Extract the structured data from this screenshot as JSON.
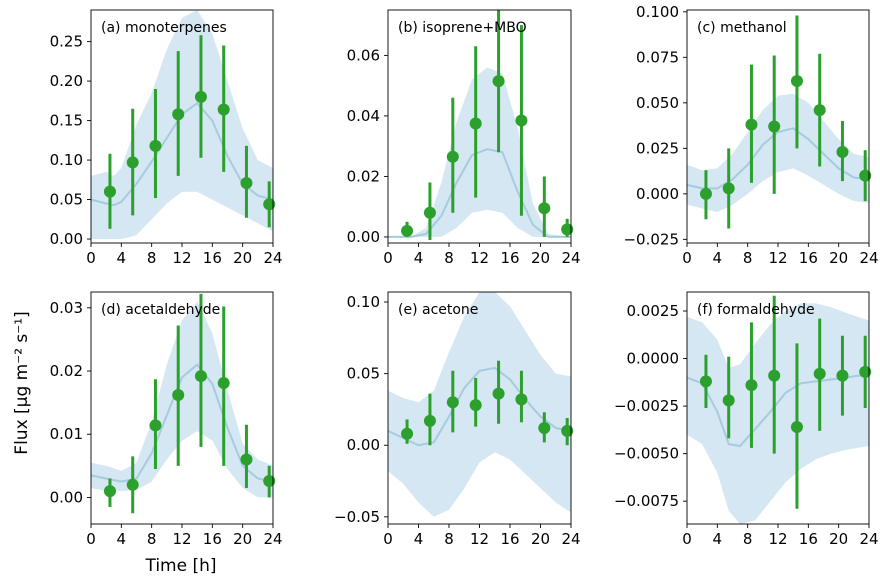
{
  "figure": {
    "ylabel": "Flux [μg m⁻² s⁻¹]",
    "xlabel": "Time [h]"
  },
  "colors": {
    "points": "#2ca02c",
    "model_line": "#a6cbe0",
    "model_band": "#cde3f0"
  },
  "chart_data": [
    {
      "type": "scatter",
      "title": "(a) monoterpenes",
      "xlim": [
        0,
        24
      ],
      "ylim": [
        -0.005,
        0.29
      ],
      "xticks": [
        0,
        4,
        8,
        12,
        16,
        20,
        24
      ],
      "yticks": [
        0.0,
        0.05,
        0.1,
        0.15,
        0.2,
        0.25
      ],
      "ytick_labels": [
        "0.00",
        "0.05",
        "0.10",
        "0.15",
        "0.20",
        "0.25"
      ],
      "series": [
        {
          "x": [
            2.5,
            5.5,
            8.5,
            11.5,
            14.5,
            17.5,
            20.5,
            23.5
          ],
          "y": [
            0.06,
            0.097,
            0.118,
            0.158,
            0.18,
            0.164,
            0.071,
            0.044
          ],
          "err_low": [
            0.013,
            0.03,
            0.052,
            0.08,
            0.103,
            0.085,
            0.027,
            0.015
          ],
          "err_high": [
            0.108,
            0.165,
            0.19,
            0.238,
            0.258,
            0.245,
            0.118,
            0.073
          ]
        },
        {
          "x": [
            0,
            2,
            3,
            4,
            6,
            8,
            10,
            12,
            14,
            16,
            18,
            20,
            22,
            24
          ],
          "y": [
            0.05,
            0.045,
            0.043,
            0.047,
            0.07,
            0.098,
            0.128,
            0.158,
            0.172,
            0.15,
            0.105,
            0.07,
            0.055,
            0.05
          ],
          "band_low": [
            0.0,
            0.0,
            0.0,
            0.0,
            0.005,
            0.025,
            0.045,
            0.06,
            0.06,
            0.05,
            0.04,
            0.03,
            0.02,
            0.01
          ],
          "band_high": [
            0.08,
            0.085,
            0.08,
            0.09,
            0.145,
            0.185,
            0.24,
            0.28,
            0.29,
            0.26,
            0.2,
            0.14,
            0.1,
            0.09
          ]
        }
      ]
    },
    {
      "type": "scatter",
      "title": "(b) isoprene+MBO",
      "xlim": [
        0,
        24
      ],
      "ylim": [
        -0.002,
        0.075
      ],
      "xticks": [
        0,
        4,
        8,
        12,
        16,
        20,
        24
      ],
      "yticks": [
        0.0,
        0.02,
        0.04,
        0.06
      ],
      "ytick_labels": [
        "0.00",
        "0.02",
        "0.04",
        "0.06"
      ],
      "series": [
        {
          "x": [
            2.5,
            5.5,
            8.5,
            11.5,
            14.5,
            17.5,
            20.5,
            23.5
          ],
          "y": [
            0.002,
            0.008,
            0.0265,
            0.0375,
            0.0515,
            0.0385,
            0.0095,
            0.0025
          ],
          "err_low": [
            0.0,
            -0.001,
            0.008,
            0.013,
            0.028,
            0.007,
            0.0,
            0.0
          ],
          "err_high": [
            0.005,
            0.018,
            0.046,
            0.063,
            0.075,
            0.07,
            0.02,
            0.006
          ]
        },
        {
          "x": [
            0,
            3,
            5,
            7,
            9,
            11,
            13,
            15,
            17,
            19,
            21,
            24
          ],
          "y": [
            0.0,
            0.0,
            0.001,
            0.007,
            0.018,
            0.027,
            0.029,
            0.028,
            0.015,
            0.004,
            0.0,
            0.0
          ],
          "band_low": [
            0.0,
            0.0,
            0.0,
            0.0,
            0.003,
            0.008,
            0.009,
            0.008,
            0.003,
            0.0,
            0.0,
            0.0
          ],
          "band_high": [
            0.0,
            0.0,
            0.003,
            0.018,
            0.038,
            0.052,
            0.056,
            0.054,
            0.036,
            0.011,
            0.001,
            0.0
          ]
        }
      ]
    },
    {
      "type": "scatter",
      "title": "(c) methanol",
      "xlim": [
        0,
        24
      ],
      "ylim": [
        -0.027,
        0.101
      ],
      "xticks": [
        0,
        4,
        8,
        12,
        16,
        20,
        24
      ],
      "yticks": [
        -0.025,
        0.0,
        0.025,
        0.05,
        0.075,
        0.1
      ],
      "ytick_labels": [
        "−0.025",
        "0.000",
        "0.025",
        "0.050",
        "0.075",
        "0.100"
      ],
      "series": [
        {
          "x": [
            2.5,
            5.5,
            8.5,
            11.5,
            14.5,
            17.5,
            20.5,
            23.5
          ],
          "y": [
            0.0,
            0.003,
            0.038,
            0.037,
            0.062,
            0.046,
            0.023,
            0.01
          ],
          "err_low": [
            -0.014,
            -0.019,
            0.006,
            0.0,
            0.025,
            0.015,
            0.007,
            -0.004
          ],
          "err_high": [
            0.013,
            0.025,
            0.071,
            0.076,
            0.098,
            0.077,
            0.04,
            0.024
          ]
        },
        {
          "x": [
            0,
            2,
            4,
            6,
            8,
            10,
            12,
            14,
            16,
            18,
            20,
            22,
            24
          ],
          "y": [
            0.005,
            0.003,
            0.003,
            0.008,
            0.016,
            0.027,
            0.034,
            0.036,
            0.03,
            0.022,
            0.014,
            0.009,
            0.008
          ],
          "band_low": [
            -0.006,
            -0.008,
            -0.01,
            -0.006,
            0.0,
            0.007,
            0.012,
            0.014,
            0.01,
            0.005,
            0.0,
            -0.004,
            -0.005
          ],
          "band_high": [
            0.016,
            0.013,
            0.014,
            0.022,
            0.034,
            0.046,
            0.054,
            0.055,
            0.05,
            0.04,
            0.03,
            0.022,
            0.02
          ]
        }
      ]
    },
    {
      "type": "scatter",
      "title": "(d) acetaldehyde",
      "xlim": [
        0,
        24
      ],
      "ylim": [
        -0.0042,
        0.0325
      ],
      "xticks": [
        0,
        4,
        8,
        12,
        16,
        20,
        24
      ],
      "yticks": [
        0.0,
        0.01,
        0.02,
        0.03
      ],
      "ytick_labels": [
        "0.00",
        "0.01",
        "0.02",
        "0.03"
      ],
      "series": [
        {
          "x": [
            2.5,
            5.5,
            8.5,
            11.5,
            14.5,
            17.5,
            20.5,
            23.5
          ],
          "y": [
            0.001,
            0.002,
            0.0114,
            0.0162,
            0.0192,
            0.0181,
            0.006,
            0.0026
          ],
          "err_low": [
            -0.0015,
            -0.0025,
            0.0045,
            0.005,
            0.008,
            0.005,
            0.0015,
            0.0
          ],
          "err_high": [
            0.003,
            0.0065,
            0.0187,
            0.0272,
            0.0322,
            0.0302,
            0.0115,
            0.005
          ]
        },
        {
          "x": [
            0,
            2,
            4,
            6,
            8,
            10,
            12,
            14,
            16,
            18,
            20,
            22,
            24
          ],
          "y": [
            0.0035,
            0.003,
            0.0025,
            0.003,
            0.007,
            0.013,
            0.019,
            0.021,
            0.018,
            0.011,
            0.005,
            0.003,
            0.0025
          ],
          "band_low": [
            0.0015,
            0.001,
            0.001,
            0.0012,
            0.0025,
            0.006,
            0.009,
            0.0105,
            0.009,
            0.0045,
            0.0015,
            0.0,
            0.0
          ],
          "band_high": [
            0.0055,
            0.005,
            0.0042,
            0.0055,
            0.012,
            0.021,
            0.028,
            0.031,
            0.026,
            0.017,
            0.0085,
            0.006,
            0.005
          ]
        }
      ]
    },
    {
      "type": "scatter",
      "title": "(e) acetone",
      "xlim": [
        0,
        24
      ],
      "ylim": [
        -0.055,
        0.107
      ],
      "xticks": [
        0,
        4,
        8,
        12,
        16,
        20,
        24
      ],
      "yticks": [
        -0.05,
        0.0,
        0.05,
        0.1
      ],
      "ytick_labels": [
        "−0.05",
        "0.00",
        "0.05",
        "0.10"
      ],
      "series": [
        {
          "x": [
            2.5,
            5.5,
            8.5,
            11.5,
            14.5,
            17.5,
            20.5,
            23.5
          ],
          "y": [
            0.008,
            0.017,
            0.03,
            0.028,
            0.036,
            0.032,
            0.012,
            0.01
          ],
          "err_low": [
            0.001,
            0.0,
            0.009,
            0.013,
            0.015,
            0.016,
            0.002,
            0.0
          ],
          "err_high": [
            0.018,
            0.036,
            0.052,
            0.047,
            0.059,
            0.052,
            0.023,
            0.019
          ]
        },
        {
          "x": [
            0,
            2,
            4,
            6,
            8,
            10,
            12,
            14,
            16,
            18,
            20,
            22,
            24
          ],
          "y": [
            0.01,
            0.005,
            0.0,
            0.002,
            0.02,
            0.04,
            0.052,
            0.054,
            0.046,
            0.032,
            0.02,
            0.012,
            0.01
          ],
          "band_low": [
            -0.018,
            -0.027,
            -0.04,
            -0.05,
            -0.045,
            -0.03,
            -0.012,
            -0.005,
            -0.01,
            -0.02,
            -0.03,
            -0.04,
            -0.047
          ],
          "band_high": [
            0.038,
            0.033,
            0.03,
            0.038,
            0.065,
            0.09,
            0.107,
            0.107,
            0.097,
            0.08,
            0.063,
            0.05,
            0.048
          ]
        }
      ]
    },
    {
      "type": "scatter",
      "title": "(f) formaldehyde",
      "xlim": [
        0,
        24
      ],
      "ylim": [
        -0.0087,
        0.0035
      ],
      "xticks": [
        0,
        4,
        8,
        12,
        16,
        20,
        24
      ],
      "yticks": [
        -0.0075,
        -0.005,
        -0.0025,
        0.0,
        0.0025
      ],
      "ytick_labels": [
        "−0.0075",
        "−0.0050",
        "−0.0025",
        "0.0000",
        "0.0025"
      ],
      "series": [
        {
          "x": [
            2.5,
            5.5,
            8.5,
            11.5,
            14.5,
            17.5,
            20.5,
            23.5
          ],
          "y": [
            -0.0012,
            -0.0022,
            -0.0014,
            -0.0009,
            -0.0036,
            -0.0008,
            -0.0009,
            -0.0007
          ],
          "err_low": [
            -0.0026,
            -0.0042,
            -0.0047,
            -0.005,
            -0.0079,
            -0.0038,
            -0.003,
            -0.0026
          ],
          "err_high": [
            0.0002,
            0.0001,
            0.0019,
            0.0033,
            0.0008,
            0.0021,
            0.0012,
            0.0012
          ]
        },
        {
          "x": [
            0,
            2,
            4,
            5.5,
            7,
            9,
            11,
            13,
            15,
            17,
            19,
            21,
            22.5,
            24
          ],
          "y": [
            -0.001,
            -0.0013,
            -0.0028,
            -0.0045,
            -0.0046,
            -0.0037,
            -0.0028,
            -0.0018,
            -0.0013,
            -0.0012,
            -0.0011,
            -0.001,
            -0.0009,
            -0.0009
          ],
          "band_low": [
            -0.004,
            -0.0045,
            -0.006,
            -0.008,
            -0.0087,
            -0.0085,
            -0.0075,
            -0.0065,
            -0.0058,
            -0.0053,
            -0.005,
            -0.0048,
            -0.0047,
            -0.0046
          ],
          "band_high": [
            0.0022,
            0.0019,
            0.001,
            -0.0005,
            -0.0003,
            0.0008,
            0.0018,
            0.0025,
            0.0029,
            0.0029,
            0.0027,
            0.0024,
            0.0022,
            0.002
          ]
        }
      ]
    }
  ]
}
